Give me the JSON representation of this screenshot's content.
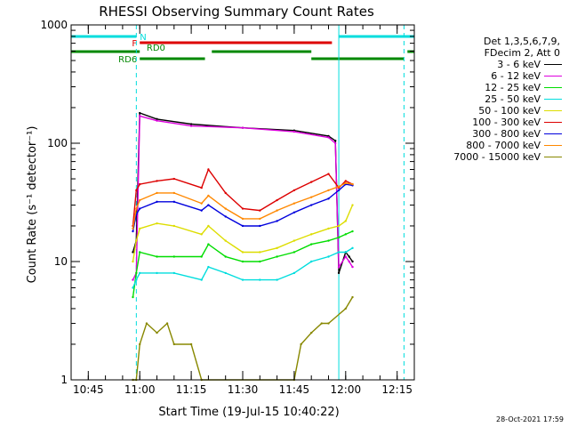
{
  "chart_data": {
    "type": "line",
    "title": "RHESSI Observing Summary Count Rates",
    "xlabel": "Start Time (19-Jul-15 10:40:22)",
    "ylabel": "Count Rate (s⁻¹ detector⁻¹)",
    "y_scale": "log",
    "ylim": [
      1,
      1000
    ],
    "xlim": [
      "10:40",
      "12:20"
    ],
    "x_ticks": [
      "10:45",
      "11:00",
      "11:15",
      "11:30",
      "11:45",
      "12:00",
      "12:15"
    ],
    "y_ticks": [
      "1",
      "10",
      "100",
      "1000"
    ],
    "legend_header": [
      "Det 1,3,5,6,7,9,",
      "FDecim 2, Att 0"
    ],
    "legend_position": "right",
    "series": [
      {
        "name": "3 - 6 keV",
        "color": "#000000",
        "x": [
          "10:58",
          "10:59",
          "11:00",
          "11:05",
          "11:15",
          "11:30",
          "11:45",
          "11:55",
          "11:57",
          "11:58",
          "12:00",
          "12:01",
          "12:02"
        ],
        "values": [
          12,
          15,
          180,
          160,
          145,
          135,
          128,
          115,
          105,
          8,
          12,
          11,
          10
        ]
      },
      {
        "name": "6 - 12 keV",
        "color": "#dd00dd",
        "x": [
          "10:58",
          "10:59",
          "11:00",
          "11:05",
          "11:15",
          "11:30",
          "11:45",
          "11:55",
          "11:57",
          "11:58",
          "12:00",
          "12:01",
          "12:02"
        ],
        "values": [
          7,
          8,
          170,
          155,
          140,
          135,
          125,
          112,
          100,
          9,
          11,
          10,
          9
        ]
      },
      {
        "name": "12 - 25 keV",
        "color": "#00dd00",
        "x": [
          "10:58",
          "10:59",
          "11:00",
          "11:05",
          "11:10",
          "11:18",
          "11:20",
          "11:25",
          "11:30",
          "11:35",
          "11:40",
          "11:45",
          "11:50",
          "11:55",
          "11:58",
          "12:00",
          "12:02"
        ],
        "values": [
          5,
          8,
          12,
          11,
          11,
          11,
          14,
          11,
          10,
          10,
          11,
          12,
          14,
          15,
          16,
          17,
          18
        ]
      },
      {
        "name": "25 - 50 keV",
        "color": "#00dddd",
        "x": [
          "10:58",
          "10:59",
          "11:00",
          "11:05",
          "11:10",
          "11:18",
          "11:20",
          "11:25",
          "11:30",
          "11:35",
          "11:40",
          "11:45",
          "11:50",
          "11:55",
          "11:58",
          "12:00",
          "12:02"
        ],
        "values": [
          6,
          7,
          8,
          8,
          8,
          7,
          9,
          8,
          7,
          7,
          7,
          8,
          10,
          11,
          12,
          12,
          13
        ]
      },
      {
        "name": "50 - 100 keV",
        "color": "#dddd00",
        "x": [
          "10:58",
          "10:59",
          "11:00",
          "11:05",
          "11:10",
          "11:18",
          "11:20",
          "11:25",
          "11:30",
          "11:35",
          "11:40",
          "11:45",
          "11:50",
          "11:55",
          "11:58",
          "12:00",
          "12:02"
        ],
        "values": [
          10,
          15,
          19,
          21,
          20,
          17,
          20,
          15,
          12,
          12,
          13,
          15,
          17,
          19,
          20,
          22,
          30
        ]
      },
      {
        "name": "100 - 300 keV",
        "color": "#dd0000",
        "x": [
          "10:58",
          "10:59",
          "11:00",
          "11:05",
          "11:10",
          "11:18",
          "11:20",
          "11:25",
          "11:30",
          "11:35",
          "11:40",
          "11:45",
          "11:50",
          "11:55",
          "11:58",
          "12:00",
          "12:02"
        ],
        "values": [
          20,
          40,
          45,
          48,
          50,
          42,
          60,
          38,
          28,
          27,
          33,
          40,
          47,
          55,
          42,
          48,
          45
        ]
      },
      {
        "name": "300 - 800 keV",
        "color": "#0000dd",
        "x": [
          "10:58",
          "10:59",
          "11:00",
          "11:05",
          "11:10",
          "11:18",
          "11:20",
          "11:25",
          "11:30",
          "11:35",
          "11:40",
          "11:45",
          "11:50",
          "11:55",
          "11:58",
          "12:00",
          "12:02"
        ],
        "values": [
          18,
          25,
          28,
          32,
          32,
          27,
          30,
          24,
          20,
          20,
          22,
          26,
          30,
          34,
          40,
          45,
          44
        ]
      },
      {
        "name": "800 - 7000 keV",
        "color": "#ff8800",
        "x": [
          "10:58",
          "10:59",
          "11:00",
          "11:05",
          "11:10",
          "11:18",
          "11:20",
          "11:25",
          "11:30",
          "11:35",
          "11:40",
          "11:45",
          "11:50",
          "11:55",
          "11:58",
          "12:00",
          "12:02"
        ],
        "values": [
          19,
          28,
          33,
          38,
          38,
          31,
          36,
          28,
          23,
          23,
          27,
          31,
          35,
          40,
          43,
          46,
          45
        ]
      },
      {
        "name": "7000 - 15000 keV",
        "color": "#888800",
        "x": [
          "10:58",
          "10:59",
          "11:00",
          "11:02",
          "11:05",
          "11:08",
          "11:10",
          "11:15",
          "11:18",
          "11:45",
          "11:47",
          "11:50",
          "11:53",
          "11:55",
          "12:00",
          "12:02"
        ],
        "values": [
          1,
          1,
          2,
          3,
          2.5,
          3,
          2,
          2,
          1,
          1,
          2,
          2.5,
          3,
          3,
          4,
          5
        ]
      }
    ],
    "bars": [
      {
        "label": "N",
        "color": "#00dddd",
        "segments": [
          [
            "10:40",
            "10:59"
          ],
          [
            "11:58",
            "12:20"
          ]
        ]
      },
      {
        "label": "F",
        "color": "#dd0000",
        "segments": [
          [
            "11:00",
            "11:56"
          ]
        ]
      },
      {
        "label": "RD0",
        "color": "#008800",
        "segments": [
          [
            "10:40",
            "11:00"
          ],
          [
            "11:21",
            "11:50"
          ],
          [
            "12:18",
            "12:20"
          ]
        ]
      },
      {
        "label": "RD6",
        "color": "#008800",
        "segments": [
          [
            "11:00",
            "11:19"
          ],
          [
            "11:50",
            "12:17"
          ]
        ]
      }
    ],
    "vlines": [
      {
        "x": "10:40",
        "color": "#00dddd",
        "style": "solid"
      },
      {
        "x": "10:59",
        "color": "#00dddd",
        "style": "dashed"
      },
      {
        "x": "11:58",
        "color": "#00dddd",
        "style": "solid"
      },
      {
        "x": "12:17",
        "color": "#00dddd",
        "style": "dashed"
      }
    ]
  },
  "timestamp": "28-Oct-2021 17:59"
}
